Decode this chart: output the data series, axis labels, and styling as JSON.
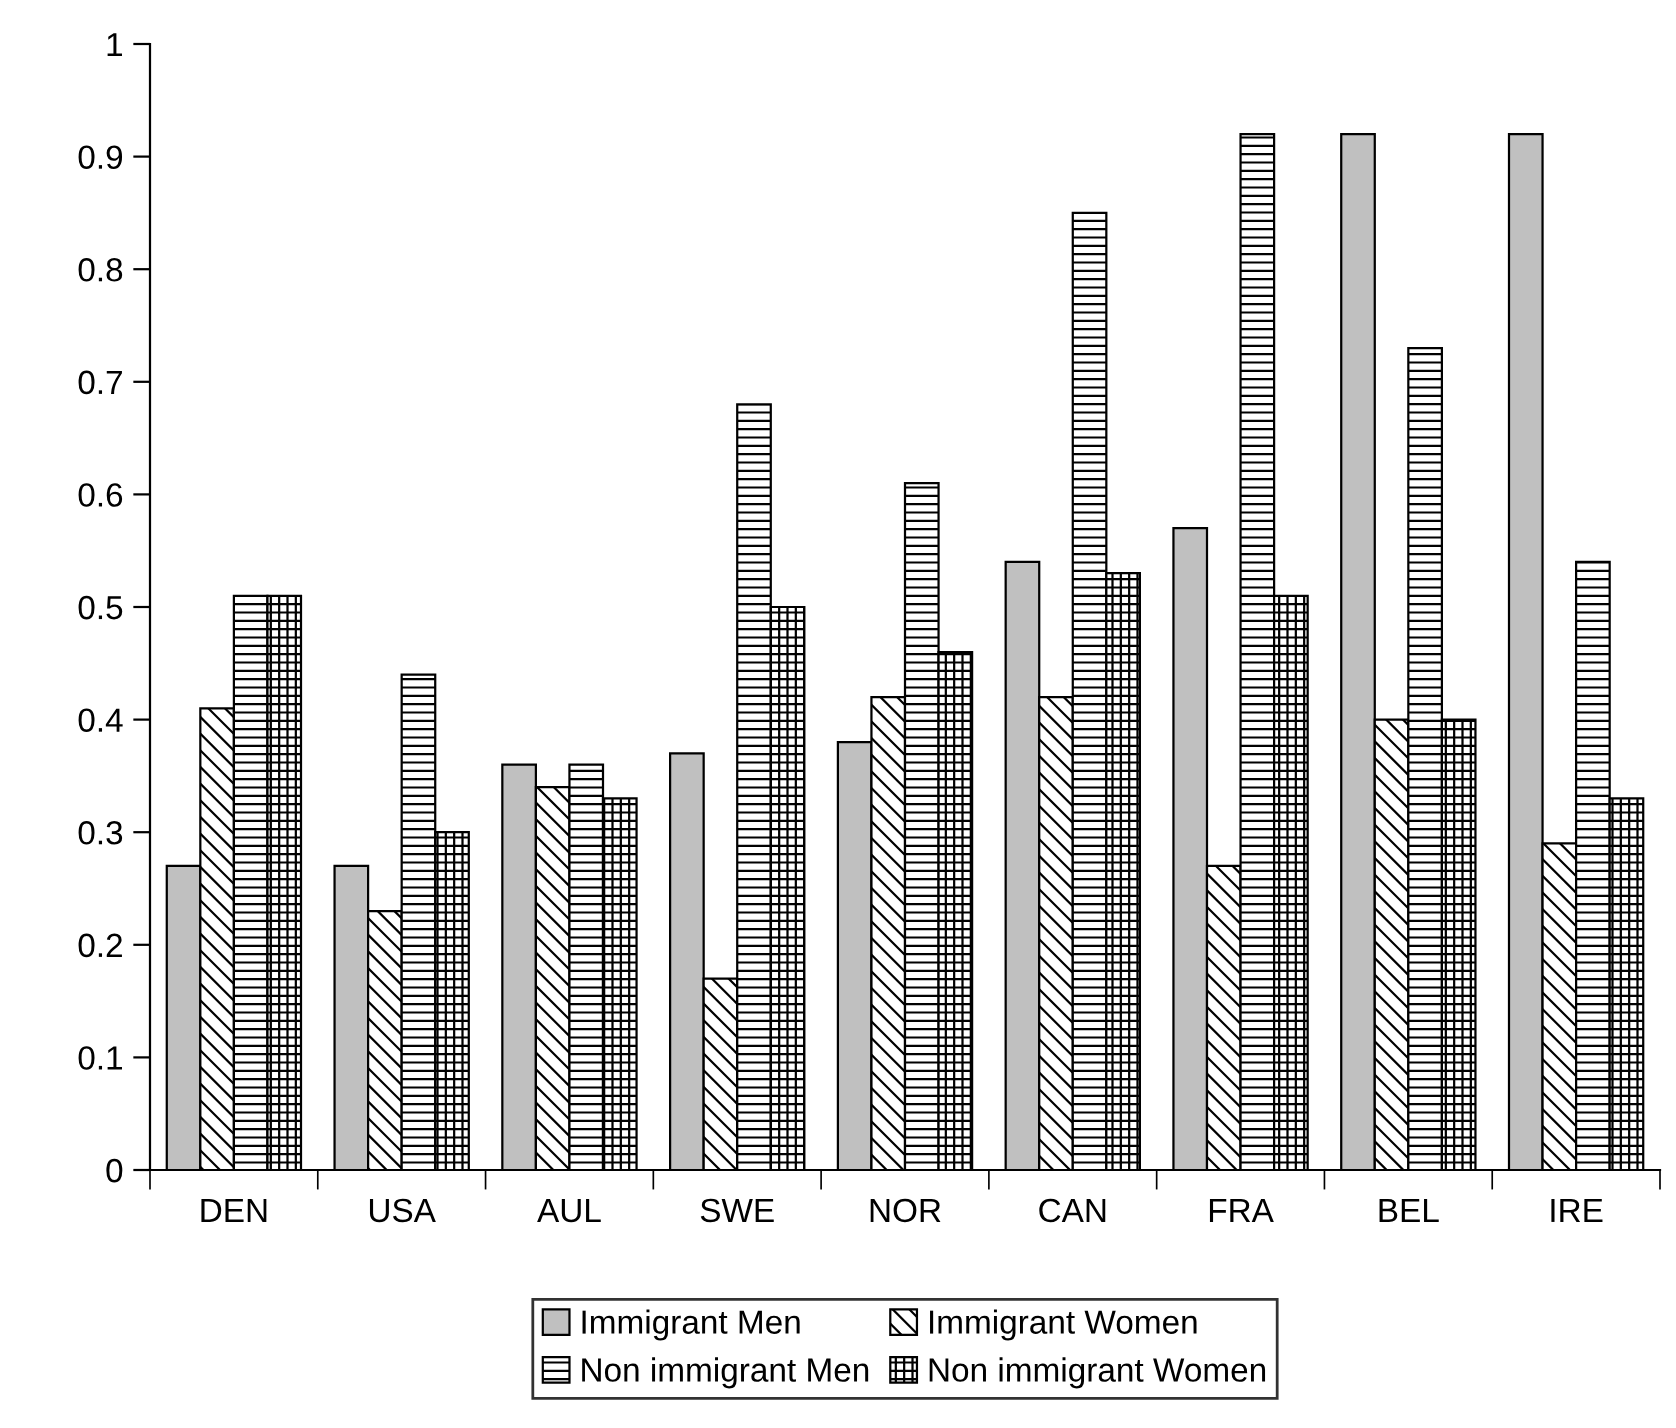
{
  "chart_data": {
    "type": "bar",
    "categories": [
      "DEN",
      "USA",
      "AUL",
      "SWE",
      "NOR",
      "CAN",
      "FRA",
      "BEL",
      "IRE"
    ],
    "series": [
      {
        "name": "Immigrant Men",
        "color": "#c0c0c0",
        "values": [
          0.27,
          0.27,
          0.36,
          0.37,
          0.38,
          0.54,
          0.57,
          0.92,
          0.92
        ]
      },
      {
        "name": "Immigrant Women",
        "color": "#000000",
        "values": [
          0.41,
          0.23,
          0.34,
          0.17,
          0.42,
          0.42,
          0.27,
          0.4,
          0.29
        ]
      },
      {
        "name": "Non immigrant Men",
        "color": "#000000",
        "values": [
          0.51,
          0.44,
          0.36,
          0.68,
          0.61,
          0.85,
          0.92,
          0.73,
          0.54
        ]
      },
      {
        "name": "Non immigrant Women",
        "color": "#000000",
        "values": [
          0.51,
          0.3,
          0.33,
          0.5,
          0.46,
          0.53,
          0.51,
          0.4,
          0.33
        ]
      }
    ],
    "ylim": [
      0,
      1
    ],
    "yticks": [
      0,
      0.1,
      0.2,
      0.3,
      0.4,
      0.5,
      0.6,
      0.7,
      0.8,
      0.9,
      1
    ],
    "grid": false,
    "legend": "bottom"
  }
}
